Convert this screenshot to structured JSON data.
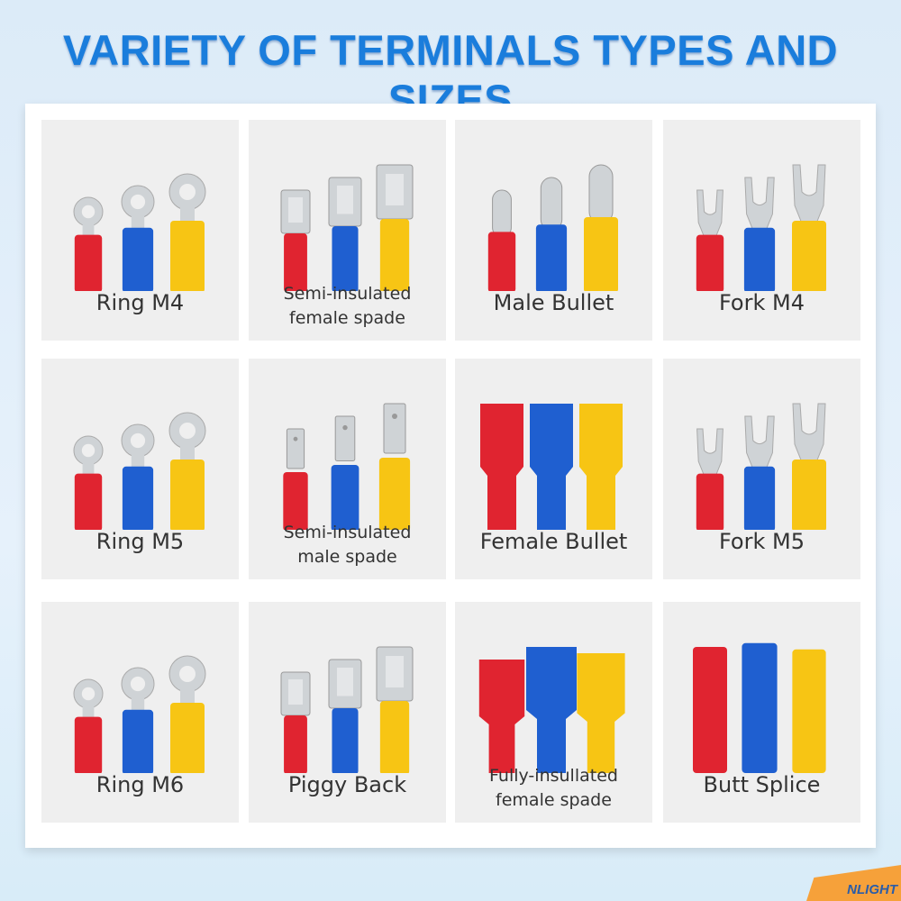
{
  "title": "VARIETY OF TERMINALS TYPES AND SIZES",
  "colors": {
    "red": "#e02430",
    "blue": "#1f5fd0",
    "yellow": "#f7c514",
    "metal": "#cfd3d6",
    "title": "#1a7ddc"
  },
  "cells": [
    {
      "label": "Ring M4",
      "type": "ring"
    },
    {
      "label": "Semi-insulated female spade",
      "type": "female-spade"
    },
    {
      "label": "Male Bullet",
      "type": "male-bullet"
    },
    {
      "label": "Fork M4",
      "type": "fork"
    },
    {
      "label": "Ring M5",
      "type": "ring"
    },
    {
      "label": "Semi-insulated male spade",
      "type": "male-spade"
    },
    {
      "label": "Female Bullet",
      "type": "female-bullet"
    },
    {
      "label": "Fork M5",
      "type": "fork"
    },
    {
      "label": "Ring M6",
      "type": "ring"
    },
    {
      "label": "Piggy Back",
      "type": "piggy-back"
    },
    {
      "label": "Fully-insullated female spade",
      "type": "full-spade"
    },
    {
      "label": "Butt Splice",
      "type": "butt-splice"
    }
  ],
  "logo": "NLIGHT"
}
